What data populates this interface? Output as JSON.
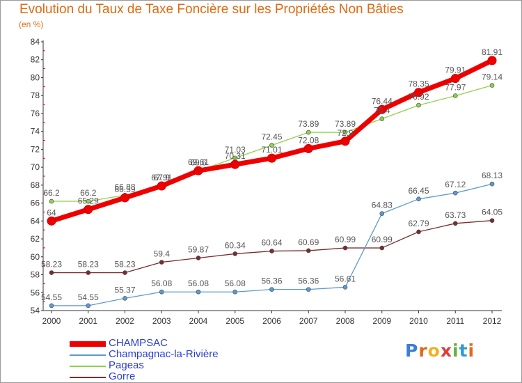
{
  "header": {
    "title": "Evolution du Taux de Taxe Foncière sur les Propriétés Non Bâties",
    "unit": "(en %)"
  },
  "logo": {
    "letters": [
      "P",
      "r",
      "o",
      "x",
      "i",
      "t",
      "i"
    ],
    "colors": [
      "#3a7fd5",
      "#e3661a",
      "#f0b020",
      "#e23a3a",
      "#5fb436",
      "#2f9ad6",
      "#e3661a"
    ]
  },
  "chart_data": {
    "type": "line",
    "x": [
      "2000",
      "2001",
      "2002",
      "2003",
      "2004",
      "2005",
      "2006",
      "2007",
      "2008",
      "2009",
      "2010",
      "2011",
      "2012"
    ],
    "ylim": [
      54,
      84
    ],
    "yticks": [
      54,
      56,
      58,
      60,
      62,
      64,
      66,
      68,
      70,
      72,
      74,
      76,
      78,
      80,
      82,
      84
    ],
    "grid": false,
    "legend_position": "bottom-left",
    "series": [
      {
        "name": "CHAMPSAC",
        "color": "#ee0000",
        "width": 7,
        "marker_r": 6,
        "values": [
          64,
          65.29,
          66.59,
          67.91,
          69.61,
          70.31,
          71.01,
          72.08,
          72.9,
          76.44,
          78.35,
          79.91,
          81.91
        ],
        "labels": [
          "64",
          "65.29",
          "66.59",
          "67.91",
          "69.61",
          "70.31",
          "71.01",
          "72.08",
          "72.9",
          "76.44",
          "78.35",
          "79.91",
          "81.91"
        ]
      },
      {
        "name": "Champagnac-la-Rivière",
        "color": "#5b9bd0",
        "width": 1.3,
        "marker_r": 3,
        "values": [
          54.55,
          54.55,
          55.37,
          56.08,
          56.08,
          56.08,
          56.36,
          56.36,
          56.61,
          64.83,
          66.45,
          67.12,
          68.13
        ],
        "labels": [
          "54.55",
          "54.55",
          "55.37",
          "56.08",
          "56.08",
          "56.08",
          "56.36",
          "56.36",
          "56.61",
          "64.83",
          "66.45",
          "67.12",
          "68.13"
        ]
      },
      {
        "name": "Pageas",
        "color": "#8fd14f",
        "width": 1.3,
        "marker_r": 3,
        "values": [
          66.2,
          66.2,
          66.88,
          67.9,
          69.6,
          71.03,
          72.45,
          73.89,
          73.89,
          75.4,
          76.92,
          77.97,
          79.14
        ],
        "labels": [
          "66.2",
          "66.2",
          "66.88",
          "67.9",
          "69.6",
          "71.03",
          "72.45",
          "73.89",
          "73.89",
          "75.4",
          "76.92",
          "77.97",
          "79.14"
        ]
      },
      {
        "name": "Gorre",
        "color": "#7b2d2d",
        "width": 1.3,
        "marker_r": 3,
        "values": [
          58.23,
          58.23,
          58.23,
          59.4,
          59.87,
          60.34,
          60.64,
          60.69,
          60.99,
          60.99,
          62.79,
          63.73,
          64.05
        ],
        "labels": [
          "58.23",
          "58.23",
          "58.23",
          "59.4",
          "59.87",
          "60.34",
          "60.64",
          "60.69",
          "60.99",
          "60.99",
          "62.79",
          "63.73",
          "64.05"
        ]
      }
    ]
  }
}
